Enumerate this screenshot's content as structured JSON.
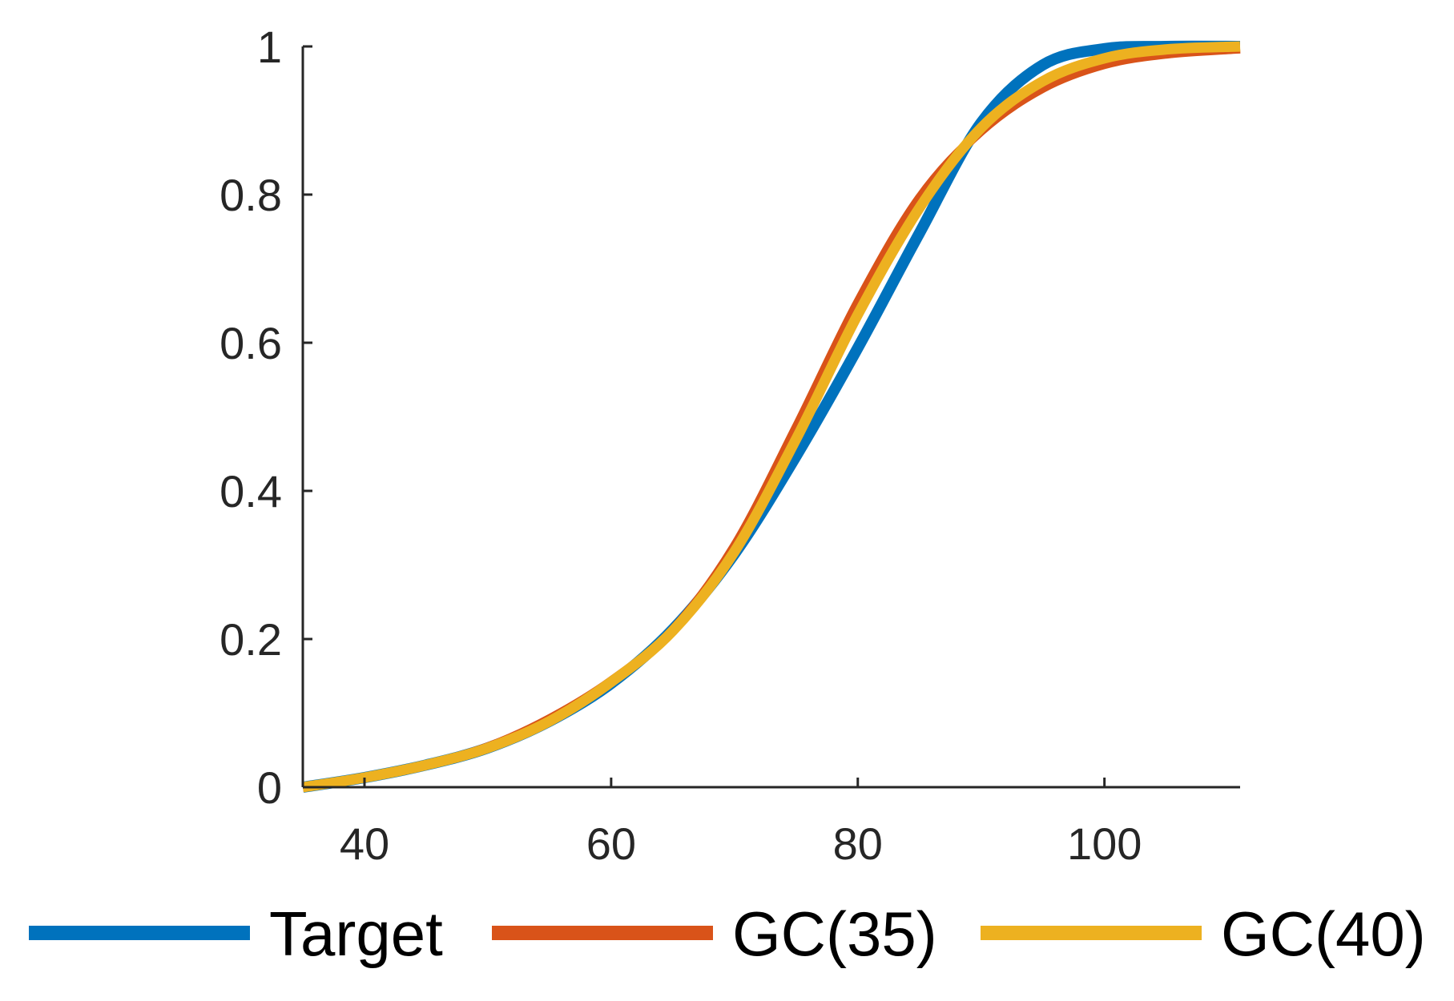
{
  "chart_data": {
    "type": "line",
    "title": "",
    "xlabel": "",
    "ylabel": "",
    "xlim": [
      35,
      111
    ],
    "ylim": [
      0,
      1
    ],
    "grid": false,
    "legend_position": "bottom",
    "x_ticks": [
      40,
      60,
      80,
      100
    ],
    "y_ticks": [
      0,
      0.2,
      0.4,
      0.6,
      0.8,
      1
    ],
    "x_tick_labels": [
      "40",
      "60",
      "80",
      "100"
    ],
    "y_tick_labels": [
      "0",
      "0.2",
      "0.4",
      "0.6",
      "0.8",
      "1"
    ],
    "x": [
      35,
      40,
      45,
      50,
      55,
      60,
      65,
      70,
      75,
      80,
      85,
      90,
      95,
      100,
      105,
      111
    ],
    "series": [
      {
        "name": "Target",
        "color": "#0072BD",
        "values": [
          0.0,
          0.013,
          0.03,
          0.053,
          0.089,
          0.14,
          0.213,
          0.315,
          0.447,
          0.593,
          0.748,
          0.897,
          0.975,
          0.997,
          1.0,
          1.0
        ]
      },
      {
        "name": "GC(35)",
        "color": "#D95319",
        "values": [
          0.0,
          0.013,
          0.03,
          0.054,
          0.092,
          0.143,
          0.212,
          0.325,
          0.485,
          0.654,
          0.795,
          0.886,
          0.944,
          0.976,
          0.99,
          0.997
        ]
      },
      {
        "name": "GC(40)",
        "color": "#EDB120",
        "values": [
          0.0,
          0.013,
          0.03,
          0.053,
          0.089,
          0.142,
          0.211,
          0.318,
          0.47,
          0.638,
          0.782,
          0.89,
          0.953,
          0.984,
          0.996,
          1.0
        ]
      }
    ]
  }
}
